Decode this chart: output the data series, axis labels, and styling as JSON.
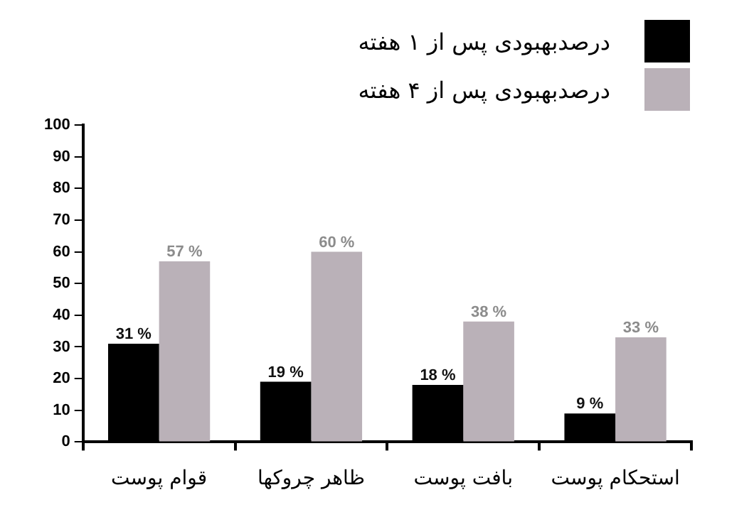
{
  "chart_data": {
    "type": "bar",
    "categories": [
      "قوام پوست",
      "ظاهر چروکها",
      "بافت پوست",
      "استحکام پوست"
    ],
    "series": [
      {
        "name": "درصدبهبودی پس از ۱ هفته",
        "color": "#000000",
        "values": [
          31,
          19,
          18,
          9
        ],
        "value_labels": [
          "31 %",
          "19 %",
          "18 %",
          "9 %"
        ]
      },
      {
        "name": "درصدبهبودی پس از ۴ هفته",
        "color": "#bab1b8",
        "values": [
          57,
          60,
          38,
          33
        ],
        "value_labels": [
          "57 %",
          "60 %",
          "38 %",
          "33 %"
        ]
      }
    ],
    "ylim": [
      0,
      100
    ],
    "yticks": [
      0,
      10,
      20,
      30,
      40,
      50,
      60,
      70,
      80,
      90,
      100
    ],
    "grid": false,
    "legend": "top right"
  }
}
